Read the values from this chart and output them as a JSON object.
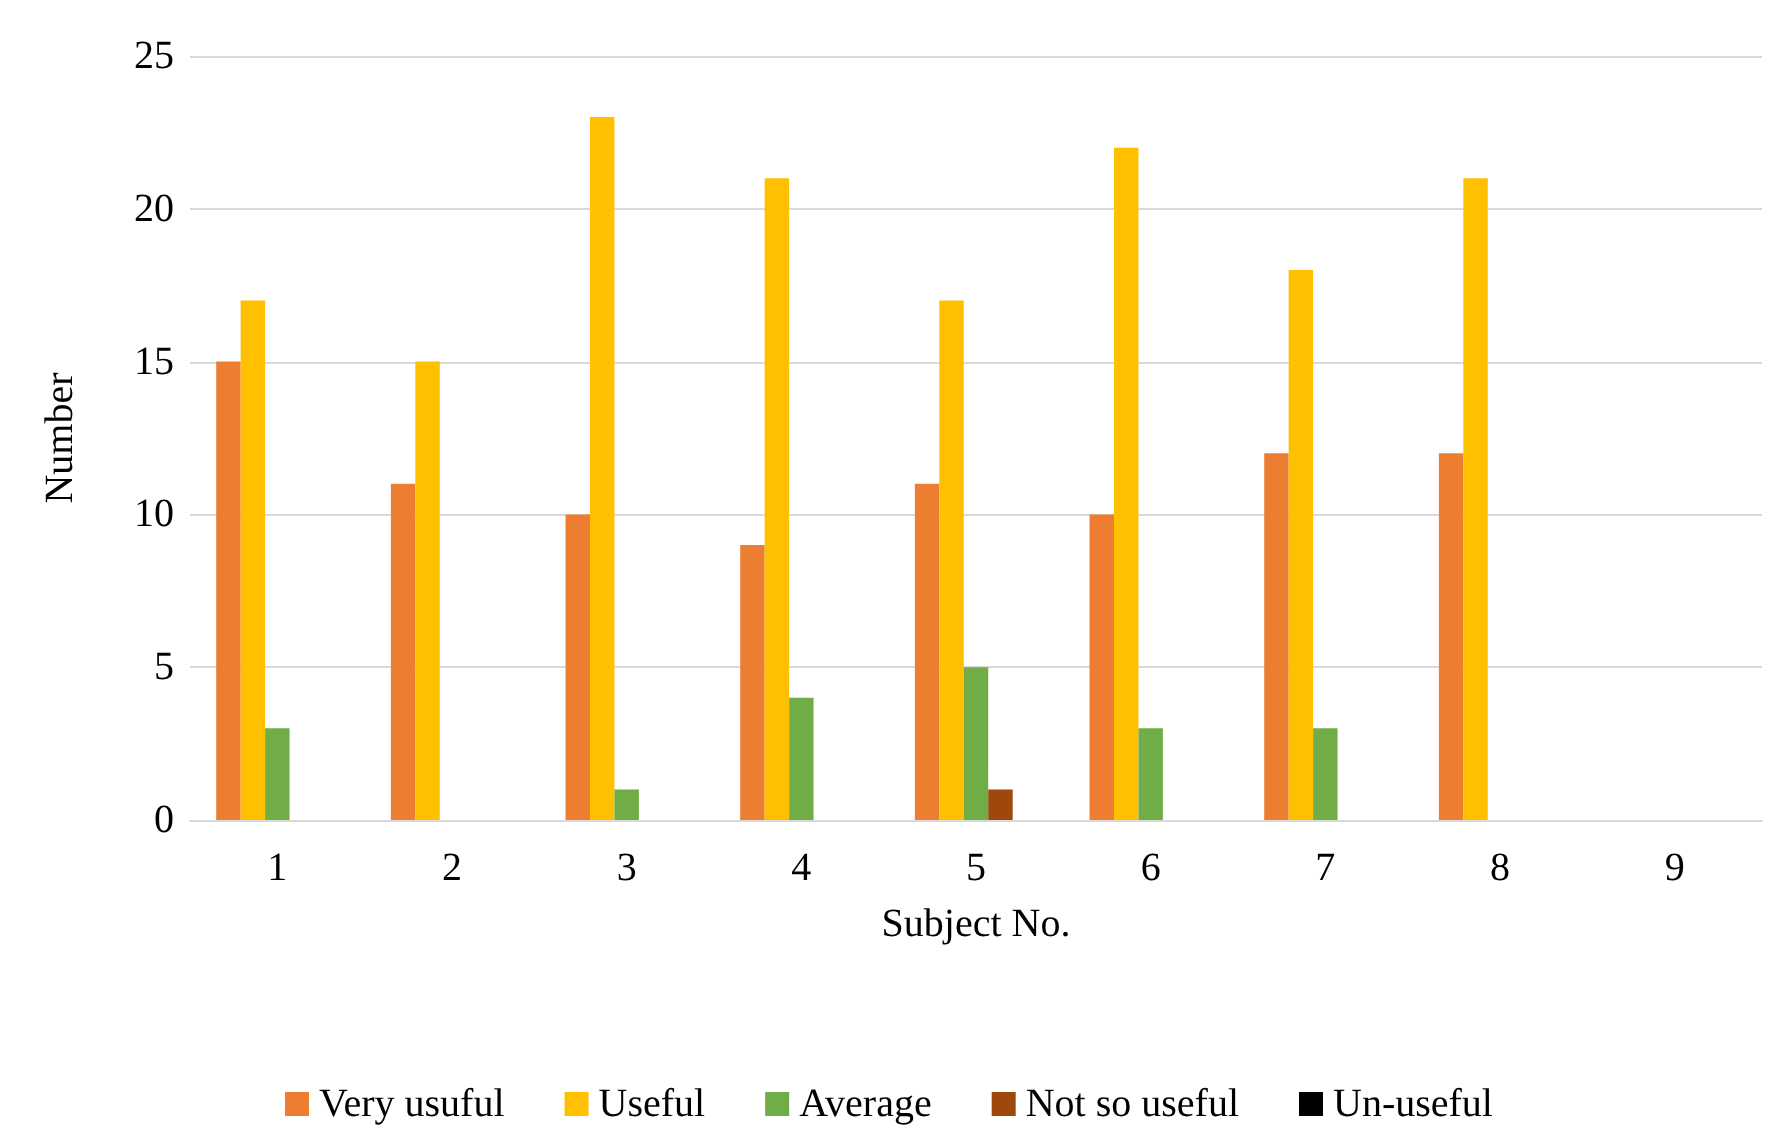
{
  "chart_data": {
    "type": "bar",
    "xlabel": "Subject No.",
    "ylabel": "Number",
    "categories": [
      "1",
      "2",
      "3",
      "4",
      "5",
      "6",
      "7",
      "8",
      "9"
    ],
    "series": [
      {
        "name": "Very usuful",
        "color": "#ed7d31",
        "values": [
          15,
          11,
          10,
          9,
          11,
          10,
          12,
          12,
          0
        ]
      },
      {
        "name": "Useful",
        "color": "#ffc000",
        "values": [
          17,
          15,
          23,
          21,
          17,
          22,
          18,
          21,
          0
        ]
      },
      {
        "name": "Average",
        "color": "#70ad47",
        "values": [
          3,
          0,
          1,
          4,
          5,
          3,
          3,
          0,
          0
        ]
      },
      {
        "name": "Not so useful",
        "color": "#9e480e",
        "values": [
          0,
          0,
          0,
          0,
          1,
          0,
          0,
          0,
          0
        ]
      },
      {
        "name": "Un-useful",
        "color": "#000000",
        "values": [
          0,
          0,
          0,
          0,
          0,
          0,
          0,
          0,
          0
        ]
      }
    ],
    "ylim": [
      0,
      25
    ],
    "yticks": [
      0,
      5,
      10,
      15,
      20,
      25
    ],
    "grid": "y",
    "legend": "bottom"
  }
}
